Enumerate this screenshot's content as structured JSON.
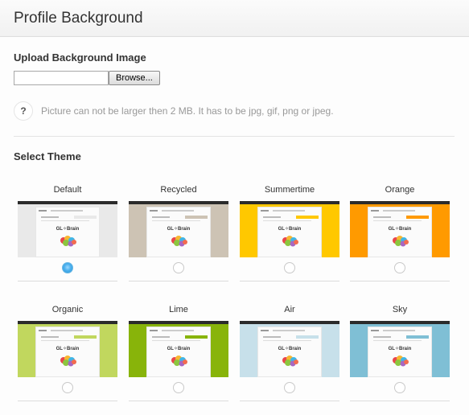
{
  "header": {
    "title": "Profile Background"
  },
  "upload": {
    "title": "Upload Background Image",
    "file_value": "",
    "browse_label": "Browse...",
    "help_icon": "?",
    "help_text": "Picture can not be larger then 2 MB. It has to be jpg, gif, png or jpeg."
  },
  "themes": {
    "title": "Select Theme",
    "selected": "Default",
    "items": [
      {
        "label": "Default",
        "bg": "#e9e9e9",
        "side": "#e9e9e9",
        "checked": true
      },
      {
        "label": "Recycled",
        "bg": "#cdc3b4",
        "side": "#cdc3b4",
        "checked": false
      },
      {
        "label": "Summertime",
        "bg": "#ffc800",
        "side": "#ffc800",
        "checked": false
      },
      {
        "label": "Orange",
        "bg": "#ff9a00",
        "side": "#ff9a00",
        "checked": false
      },
      {
        "label": "Organic",
        "bg": "#c1d75e",
        "side": "#c1d75e",
        "checked": false
      },
      {
        "label": "Lime",
        "bg": "#88b40a",
        "side": "#88b40a",
        "checked": false
      },
      {
        "label": "Air",
        "bg": "#c7e0ea",
        "side": "#c7e0ea",
        "checked": false
      },
      {
        "label": "Sky",
        "bg": "#7fbfd5",
        "side": "#7fbfd5",
        "checked": false
      }
    ],
    "thumb_brand": "GL✧Brain"
  }
}
